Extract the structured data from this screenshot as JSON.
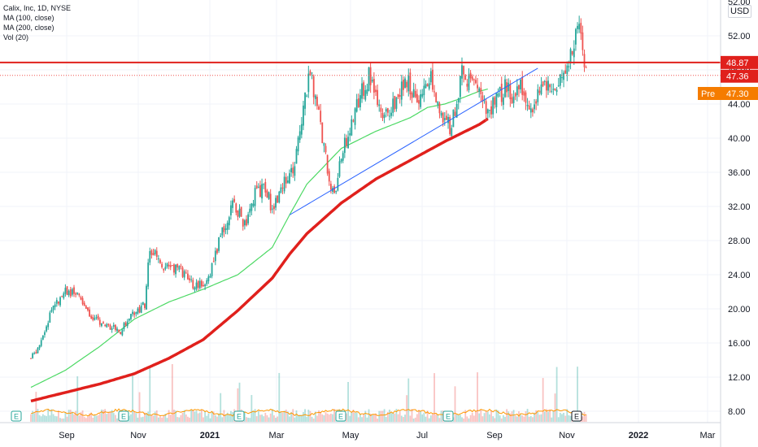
{
  "legend": {
    "title": "Calix, Inc, 1D, NYSE",
    "ma100": "MA (100, close)",
    "ma200": "MA (200, close)",
    "vol": "Vol (20)"
  },
  "currency": "USD",
  "chart_data": {
    "type": "candlestick",
    "y_axis": {
      "min": 8,
      "max": 52,
      "ticks": [
        8,
        12,
        16,
        20,
        24,
        28,
        32,
        36,
        40,
        44,
        48,
        52
      ],
      "tick_labels": [
        "8.00",
        "12.00",
        "16.00",
        "20.00",
        "24.00",
        "28.00",
        "32.00",
        "36.00",
        "40.00",
        "44.00",
        "48.00",
        "52.00"
      ],
      "top_partial_label": "52.00"
    },
    "x_axis": {
      "ticks": [
        {
          "label": "Sep",
          "bold": false
        },
        {
          "label": "Nov",
          "bold": false
        },
        {
          "label": "2021",
          "bold": true
        },
        {
          "label": "Mar",
          "bold": false
        },
        {
          "label": "May",
          "bold": false
        },
        {
          "label": "Jul",
          "bold": false
        },
        {
          "label": "Sep",
          "bold": false
        },
        {
          "label": "Nov",
          "bold": false
        },
        {
          "label": "2022",
          "bold": true
        },
        {
          "label": "Mar",
          "bold": false
        }
      ]
    },
    "price_labels": [
      {
        "name": "resistance",
        "value": "48.87",
        "color": "#e0201c"
      },
      {
        "name": "last",
        "value": "47.36",
        "color": "#e0201c"
      },
      {
        "name": "premarket",
        "prefix": "Pre",
        "value": "47.30",
        "color": "#f57c00"
      }
    ],
    "resistance_level": 48.87,
    "last_close": 47.36,
    "premarket": 47.3,
    "trendline": {
      "start_month": 7.5,
      "start_price": 31.0,
      "end_month": 14.7,
      "end_price": 48.2
    },
    "ma100_anchors": [
      [
        0,
        10.8
      ],
      [
        1,
        12.8
      ],
      [
        2,
        15.6
      ],
      [
        3,
        18.8
      ],
      [
        4,
        20.8
      ],
      [
        5,
        22.3
      ],
      [
        6,
        24.0
      ],
      [
        7,
        27.2
      ],
      [
        7.5,
        31.0
      ],
      [
        8,
        34.6
      ],
      [
        9,
        38.8
      ],
      [
        10,
        40.8
      ],
      [
        11,
        42.4
      ],
      [
        11.5,
        43.6
      ],
      [
        12,
        44.0
      ],
      [
        12.5,
        44.7
      ],
      [
        13,
        45.5
      ],
      [
        13.3,
        45.8
      ]
    ],
    "ma200_anchors": [
      [
        0,
        9.2
      ],
      [
        1,
        10.2
      ],
      [
        2,
        11.2
      ],
      [
        3,
        12.4
      ],
      [
        4,
        14.2
      ],
      [
        5,
        16.4
      ],
      [
        6,
        19.8
      ],
      [
        7,
        23.6
      ],
      [
        7.5,
        26.4
      ],
      [
        8,
        28.8
      ],
      [
        9,
        32.4
      ],
      [
        10,
        35.2
      ],
      [
        11,
        37.4
      ],
      [
        12,
        39.6
      ],
      [
        13,
        41.6
      ],
      [
        13.3,
        42.4
      ]
    ],
    "price_anchors": [
      [
        0,
        14.2
      ],
      [
        0.3,
        16.0
      ],
      [
        0.6,
        20.0
      ],
      [
        1.0,
        22.2
      ],
      [
        1.4,
        21.4
      ],
      [
        1.8,
        18.8
      ],
      [
        2.3,
        18.0
      ],
      [
        2.6,
        17.4
      ],
      [
        2.9,
        19.2
      ],
      [
        3.3,
        20.6
      ],
      [
        3.45,
        27.0
      ],
      [
        3.9,
        24.8
      ],
      [
        4.3,
        24.8
      ],
      [
        4.6,
        23.0
      ],
      [
        4.9,
        22.8
      ],
      [
        5.2,
        24.0
      ],
      [
        5.5,
        28.6
      ],
      [
        5.9,
        32.4
      ],
      [
        6.2,
        29.8
      ],
      [
        6.5,
        33.4
      ],
      [
        6.8,
        34.2
      ],
      [
        7.0,
        31.6
      ],
      [
        7.3,
        34.8
      ],
      [
        7.6,
        35.8
      ],
      [
        7.9,
        44.0
      ],
      [
        8.1,
        47.4
      ],
      [
        8.3,
        44.2
      ],
      [
        8.6,
        36.2
      ],
      [
        8.8,
        32.8
      ],
      [
        9.0,
        37.8
      ],
      [
        9.4,
        43.4
      ],
      [
        9.8,
        47.2
      ],
      [
        10.2,
        41.8
      ],
      [
        10.5,
        44.0
      ],
      [
        10.9,
        46.6
      ],
      [
        11.3,
        44.2
      ],
      [
        11.6,
        47.6
      ],
      [
        11.9,
        42.0
      ],
      [
        12.2,
        41.4
      ],
      [
        12.5,
        47.4
      ],
      [
        12.9,
        46.0
      ],
      [
        13.2,
        43.4
      ],
      [
        13.5,
        44.2
      ],
      [
        13.8,
        46.4
      ],
      [
        14.0,
        44.8
      ],
      [
        14.2,
        46.0
      ],
      [
        14.5,
        42.8
      ],
      [
        14.8,
        47.0
      ],
      [
        15.1,
        45.4
      ],
      [
        15.3,
        46.4
      ],
      [
        15.5,
        47.8
      ],
      [
        15.7,
        50.6
      ],
      [
        15.85,
        53.2
      ],
      [
        16.0,
        51.4
      ],
      [
        16.1,
        47.4
      ]
    ]
  }
}
